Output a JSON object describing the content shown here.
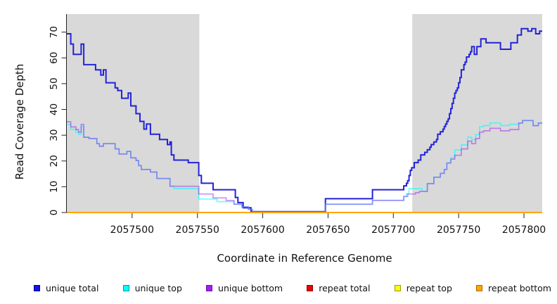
{
  "chart_data": {
    "type": "line",
    "subtype": "step-coverage-plot",
    "title": "",
    "xlabel": "Coordinate in Reference Genome",
    "ylabel": "Read Coverage Depth",
    "xlim": [
      2057450,
      2057814
    ],
    "ylim": [
      0,
      77
    ],
    "x_ticks": [
      2057500,
      2057550,
      2057600,
      2057650,
      2057700,
      2057750,
      2057800
    ],
    "y_ticks": [
      0,
      10,
      20,
      30,
      40,
      50,
      60,
      70
    ],
    "grid": false,
    "legend_position": "bottom",
    "plot_background": "#FFFFFF",
    "shaded_regions": [
      {
        "name": "left-repeat-flank",
        "x_start": 2057450,
        "x_end": 2057551.5,
        "color": "#D9D9D9"
      },
      {
        "name": "right-repeat-flank",
        "x_start": 2057714.5,
        "x_end": 2057814,
        "color": "#D9D9D9"
      }
    ],
    "series": [
      {
        "name": "unique total",
        "color": "#2323D7",
        "alpha": 1,
        "line_width": 2,
        "swatch_fill": "#1414E0",
        "swatch_border": "#00009B",
        "steps": [
          [
            2057450,
            69
          ],
          [
            2057453,
            65
          ],
          [
            2057455,
            61
          ],
          [
            2057461,
            65
          ],
          [
            2057463,
            57
          ],
          [
            2057472,
            55
          ],
          [
            2057476,
            53
          ],
          [
            2057478,
            55
          ],
          [
            2057480,
            50
          ],
          [
            2057487,
            48
          ],
          [
            2057489,
            47
          ],
          [
            2057492,
            44
          ],
          [
            2057497,
            46
          ],
          [
            2057499,
            41
          ],
          [
            2057503,
            38
          ],
          [
            2057506,
            35
          ],
          [
            2057509,
            32
          ],
          [
            2057511,
            34
          ],
          [
            2057514,
            30
          ],
          [
            2057521,
            28
          ],
          [
            2057527,
            26
          ],
          [
            2057529,
            27
          ],
          [
            2057530,
            22
          ],
          [
            2057532,
            20
          ],
          [
            2057543,
            19
          ],
          [
            2057551,
            14
          ],
          [
            2057553,
            11
          ],
          [
            2057562,
            8.5
          ],
          [
            2057579,
            5.5
          ],
          [
            2057581,
            3.5
          ],
          [
            2057585,
            1.5
          ],
          [
            2057591,
            0
          ],
          [
            2057648,
            5
          ],
          [
            2057684,
            8.5
          ],
          [
            2057708,
            10
          ],
          [
            2057710,
            11
          ],
          [
            2057711,
            12
          ],
          [
            2057712,
            14
          ],
          [
            2057713,
            16
          ],
          [
            2057714,
            17
          ],
          [
            2057716,
            19
          ],
          [
            2057719,
            20
          ],
          [
            2057721,
            22
          ],
          [
            2057724,
            23
          ],
          [
            2057726,
            24
          ],
          [
            2057728,
            25
          ],
          [
            2057729,
            26
          ],
          [
            2057731,
            27
          ],
          [
            2057733,
            28
          ],
          [
            2057734,
            30
          ],
          [
            2057736,
            31
          ],
          [
            2057738,
            32
          ],
          [
            2057739,
            33
          ],
          [
            2057740,
            34
          ],
          [
            2057741,
            35
          ],
          [
            2057742,
            36
          ],
          [
            2057743,
            38
          ],
          [
            2057744,
            40
          ],
          [
            2057745,
            42
          ],
          [
            2057746,
            44
          ],
          [
            2057747,
            46
          ],
          [
            2057748,
            47
          ],
          [
            2057749,
            48
          ],
          [
            2057750,
            50
          ],
          [
            2057751,
            52
          ],
          [
            2057752,
            55
          ],
          [
            2057754,
            57
          ],
          [
            2057755,
            58
          ],
          [
            2057756,
            60
          ],
          [
            2057758,
            61
          ],
          [
            2057759,
            62
          ],
          [
            2057760,
            64
          ],
          [
            2057762,
            61
          ],
          [
            2057764,
            64
          ],
          [
            2057767,
            67
          ],
          [
            2057771,
            65.5
          ],
          [
            2057782,
            63
          ],
          [
            2057790,
            65.5
          ],
          [
            2057795,
            68.5
          ],
          [
            2057798,
            71
          ],
          [
            2057803,
            70
          ],
          [
            2057806,
            71
          ],
          [
            2057809,
            69
          ],
          [
            2057812,
            70
          ]
        ]
      },
      {
        "name": "unique top",
        "color": "#00FFFF",
        "alpha": 0.6,
        "line_width": 1.7,
        "swatch_fill": "#00FFFF",
        "swatch_border": "#009A9A",
        "steps": [
          [
            2057450,
            34
          ],
          [
            2057453,
            32
          ],
          [
            2057457,
            31
          ],
          [
            2057459,
            30
          ],
          [
            2057461,
            33
          ],
          [
            2057463,
            29
          ],
          [
            2057467,
            28.5
          ],
          [
            2057473,
            26.5
          ],
          [
            2057475,
            25.5
          ],
          [
            2057478,
            26.5
          ],
          [
            2057487,
            24.5
          ],
          [
            2057490,
            22.5
          ],
          [
            2057496,
            23.5
          ],
          [
            2057499,
            21
          ],
          [
            2057503,
            20
          ],
          [
            2057505,
            18
          ],
          [
            2057507,
            16.5
          ],
          [
            2057514,
            15.5
          ],
          [
            2057519,
            13
          ],
          [
            2057529,
            10
          ],
          [
            2057532,
            9
          ],
          [
            2057551,
            5
          ],
          [
            2057565,
            4
          ],
          [
            2057578,
            3
          ],
          [
            2057584,
            2
          ],
          [
            2057589,
            1
          ],
          [
            2057592,
            0
          ],
          [
            2057648,
            3
          ],
          [
            2057684,
            4.5
          ],
          [
            2057708,
            6
          ],
          [
            2057710,
            7
          ],
          [
            2057712,
            9
          ],
          [
            2057722,
            8
          ],
          [
            2057726,
            11
          ],
          [
            2057731,
            13.5
          ],
          [
            2057736,
            15
          ],
          [
            2057739,
            16.5
          ],
          [
            2057741,
            19
          ],
          [
            2057744,
            21
          ],
          [
            2057747,
            24
          ],
          [
            2057752,
            26
          ],
          [
            2057757,
            29
          ],
          [
            2057760,
            28
          ],
          [
            2057763,
            30
          ],
          [
            2057766,
            33
          ],
          [
            2057769,
            33.5
          ],
          [
            2057774,
            34.5
          ],
          [
            2057782,
            33.5
          ],
          [
            2057789,
            34
          ],
          [
            2057796,
            34.5
          ],
          [
            2057799,
            35.5
          ],
          [
            2057807,
            33.5
          ],
          [
            2057811,
            34.5
          ]
        ]
      },
      {
        "name": "unique bottom",
        "color": "#A020F0",
        "alpha": 0.5,
        "line_width": 1.7,
        "swatch_fill": "#A020F0",
        "swatch_border": "#6E0DAE",
        "steps": [
          [
            2057450,
            35
          ],
          [
            2057453,
            33
          ],
          [
            2057457,
            32
          ],
          [
            2057459,
            31
          ],
          [
            2057461,
            34
          ],
          [
            2057463,
            29
          ],
          [
            2057467,
            28.5
          ],
          [
            2057473,
            26.5
          ],
          [
            2057475,
            25.5
          ],
          [
            2057478,
            26.5
          ],
          [
            2057487,
            24.5
          ],
          [
            2057490,
            22.5
          ],
          [
            2057496,
            23.5
          ],
          [
            2057499,
            21
          ],
          [
            2057503,
            20
          ],
          [
            2057505,
            18
          ],
          [
            2057507,
            16.5
          ],
          [
            2057514,
            15.5
          ],
          [
            2057519,
            13
          ],
          [
            2057529,
            10
          ],
          [
            2057551,
            7
          ],
          [
            2057562,
            5.5
          ],
          [
            2057572,
            4.5
          ],
          [
            2057578,
            3
          ],
          [
            2057584,
            2
          ],
          [
            2057589,
            1
          ],
          [
            2057592,
            0
          ],
          [
            2057648,
            3
          ],
          [
            2057684,
            4.5
          ],
          [
            2057708,
            6
          ],
          [
            2057711,
            7
          ],
          [
            2057717,
            7.5
          ],
          [
            2057720,
            8
          ],
          [
            2057726,
            11
          ],
          [
            2057731,
            13.5
          ],
          [
            2057736,
            15
          ],
          [
            2057739,
            16.5
          ],
          [
            2057741,
            19
          ],
          [
            2057744,
            20.5
          ],
          [
            2057747,
            22
          ],
          [
            2057752,
            24.5
          ],
          [
            2057757,
            27.5
          ],
          [
            2057760,
            26.5
          ],
          [
            2057763,
            28.5
          ],
          [
            2057766,
            31
          ],
          [
            2057769,
            31.5
          ],
          [
            2057774,
            32.5
          ],
          [
            2057782,
            31.5
          ],
          [
            2057789,
            32
          ],
          [
            2057796,
            34.5
          ],
          [
            2057799,
            35.5
          ],
          [
            2057807,
            33.5
          ],
          [
            2057811,
            34.5
          ]
        ]
      },
      {
        "name": "repeat total",
        "color": "#DD0000",
        "alpha": 1,
        "line_width": 1.7,
        "swatch_fill": "#EE0000",
        "swatch_border": "#8B0000",
        "steps": [
          [
            2057450,
            0
          ]
        ]
      },
      {
        "name": "repeat top",
        "color": "#FFFF00",
        "alpha": 1,
        "line_width": 1.7,
        "swatch_fill": "#FFFF00",
        "swatch_border": "#9A9A00",
        "steps": [
          [
            2057450,
            0
          ]
        ]
      },
      {
        "name": "repeat bottom",
        "color": "#FFA500",
        "alpha": 1,
        "line_width": 2,
        "swatch_fill": "#FFA500",
        "swatch_border": "#B06A00",
        "steps": [
          [
            2057450,
            0
          ]
        ]
      }
    ]
  }
}
